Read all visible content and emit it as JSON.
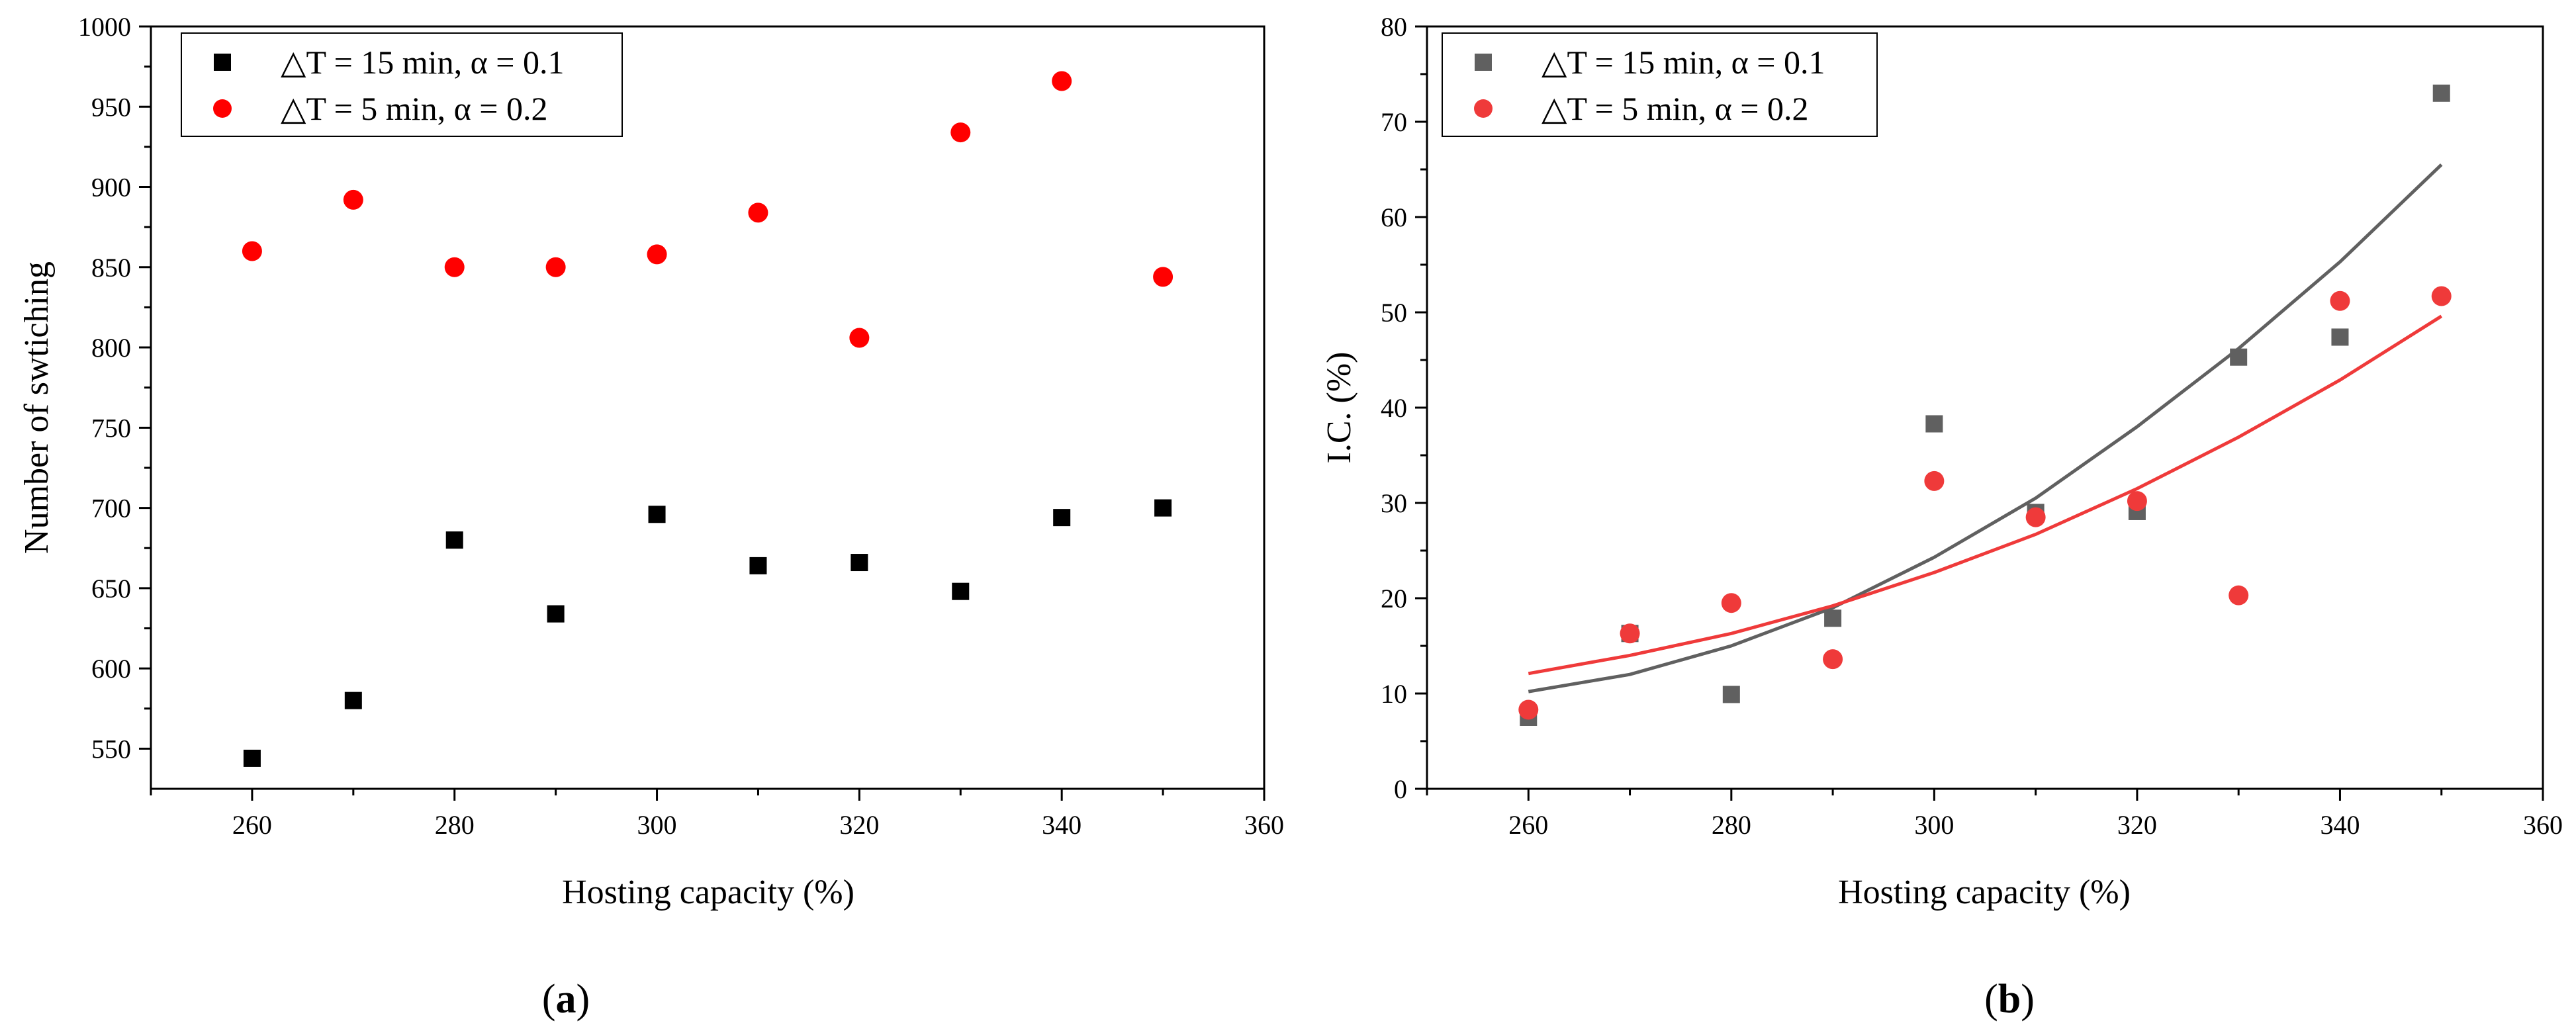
{
  "chart_data": [
    {
      "type": "scatter",
      "panel_label": "a",
      "title": "",
      "xlabel": "Hosting capacity (%)",
      "ylabel": "Number of swtiching",
      "xlim": [
        250,
        360
      ],
      "ylim": [
        525,
        1000
      ],
      "xticks": [
        "260",
        "280",
        "300",
        "320",
        "340",
        "360"
      ],
      "yticks": [
        "550",
        "600",
        "650",
        "700",
        "750",
        "800",
        "850",
        "900",
        "950",
        "1000"
      ],
      "legend_position": "top-left",
      "series": [
        {
          "name": "△T = 15 min, α = 0.1",
          "marker": "square",
          "color": "#000000",
          "x": [
            260,
            270,
            280,
            290,
            300,
            310,
            320,
            330,
            340,
            350
          ],
          "y": [
            544,
            580,
            680,
            634,
            696,
            664,
            666,
            648,
            694,
            700
          ]
        },
        {
          "name": "△T = 5 min, α = 0.2",
          "marker": "circle",
          "color": "#ff0000",
          "x": [
            260,
            270,
            280,
            290,
            300,
            310,
            320,
            330,
            340,
            350
          ],
          "y": [
            860,
            892,
            850,
            850,
            858,
            884,
            806,
            934,
            966,
            844
          ]
        }
      ]
    },
    {
      "type": "scatter",
      "panel_label": "b",
      "title": "",
      "xlabel": "Hosting capacity (%)",
      "ylabel": "I.C. (%)",
      "xlim": [
        250,
        360
      ],
      "ylim": [
        0,
        80
      ],
      "xticks": [
        "260",
        "280",
        "300",
        "320",
        "340",
        "360"
      ],
      "yticks": [
        "0",
        "10",
        "20",
        "30",
        "40",
        "50",
        "60",
        "70",
        "80"
      ],
      "legend_position": "top-left",
      "series": [
        {
          "name": "△T = 15 min, α = 0.1",
          "marker": "square",
          "color": "#606060",
          "x": [
            260,
            270,
            280,
            290,
            300,
            310,
            320,
            330,
            340,
            350
          ],
          "y": [
            7.5,
            16.3,
            9.9,
            17.9,
            38.3,
            29.0,
            29.1,
            45.3,
            47.4,
            73.0
          ],
          "fit": {
            "x": [
              260,
              270,
              280,
              290,
              300,
              310,
              320,
              330,
              340,
              350
            ],
            "y": [
              10.2,
              12.0,
              15.0,
              19.0,
              24.3,
              30.5,
              38.0,
              46.2,
              55.3,
              65.5
            ]
          }
        },
        {
          "name": "△T = 5 min, α = 0.2",
          "marker": "circle",
          "color": "#ef3a3a",
          "x": [
            260,
            270,
            280,
            290,
            300,
            310,
            320,
            330,
            340,
            350
          ],
          "y": [
            8.3,
            16.3,
            19.5,
            13.6,
            32.3,
            28.5,
            30.2,
            20.3,
            51.2,
            51.7
          ],
          "fit": {
            "x": [
              260,
              270,
              280,
              290,
              300,
              310,
              320,
              330,
              340,
              350
            ],
            "y": [
              12.1,
              14.0,
              16.3,
              19.2,
              22.7,
              26.7,
              31.5,
              36.9,
              42.9,
              49.6
            ]
          }
        }
      ]
    }
  ]
}
